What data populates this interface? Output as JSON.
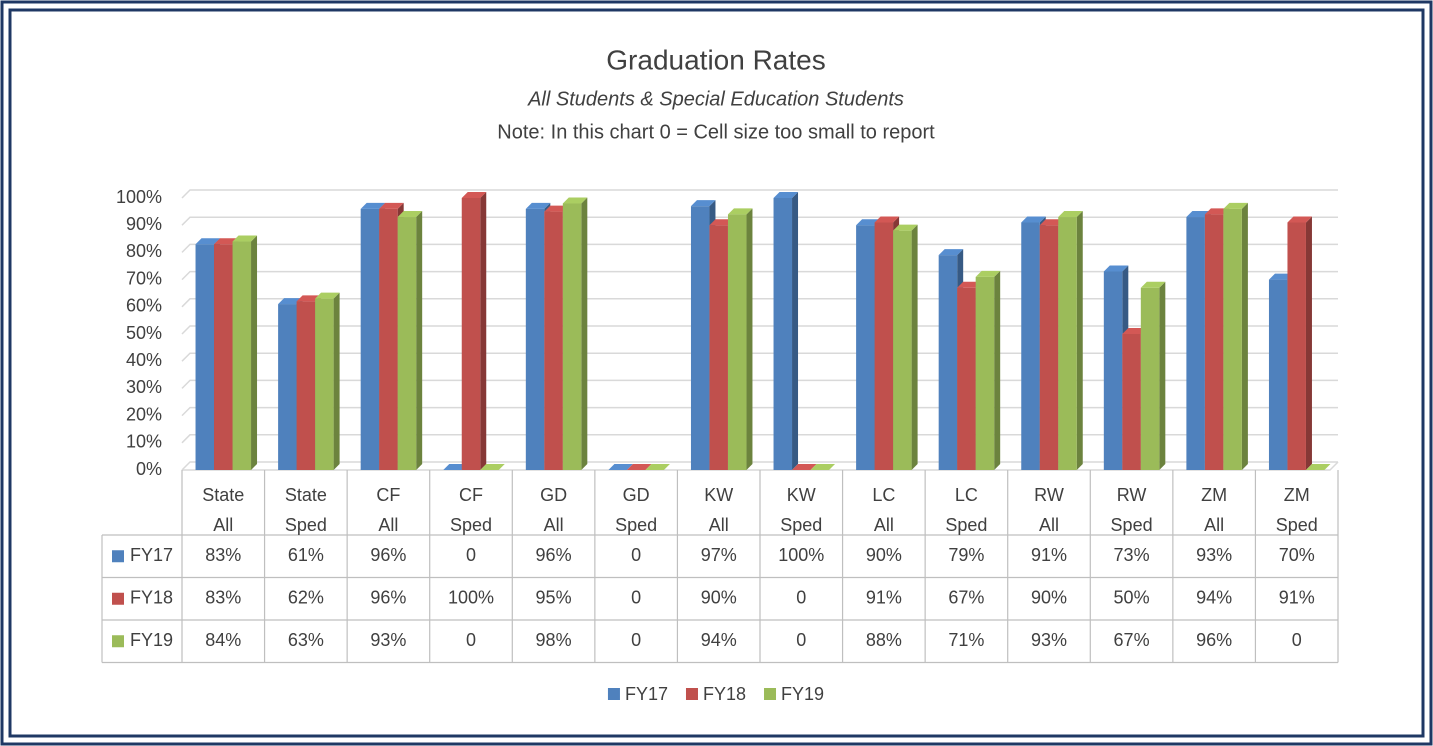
{
  "chart_data": {
    "type": "bar3d",
    "title": "Graduation Rates",
    "subtitle": "All Students & Special Education Students",
    "note": "Note: In this chart 0 = Cell size too small to report",
    "categories": [
      "State All",
      "State Sped",
      "CF All",
      "CF Sped",
      "GD All",
      "GD Sped",
      "KW All",
      "KW Sped",
      "LC All",
      "LC Sped",
      "RW All",
      "RW Sped",
      "ZM All",
      "ZM Sped"
    ],
    "series": [
      {
        "name": "FY17",
        "color": "#4f81bd",
        "values": [
          83,
          61,
          96,
          0,
          96,
          0,
          97,
          100,
          90,
          79,
          91,
          73,
          93,
          70
        ],
        "value_labels": [
          "83%",
          "61%",
          "96%",
          "0",
          "96%",
          "0",
          "97%",
          "100%",
          "90%",
          "79%",
          "91%",
          "73%",
          "93%",
          "70%"
        ]
      },
      {
        "name": "FY18",
        "color": "#c0504d",
        "values": [
          83,
          62,
          96,
          100,
          95,
          0,
          90,
          0,
          91,
          67,
          90,
          50,
          94,
          91
        ],
        "value_labels": [
          "83%",
          "62%",
          "96%",
          "100%",
          "95%",
          "0",
          "90%",
          "0",
          "91%",
          "67%",
          "90%",
          "50%",
          "94%",
          "91%"
        ]
      },
      {
        "name": "FY19",
        "color": "#9bbb59",
        "values": [
          84,
          63,
          93,
          0,
          98,
          0,
          94,
          0,
          88,
          71,
          93,
          67,
          96,
          0
        ],
        "value_labels": [
          "84%",
          "63%",
          "93%",
          "0",
          "98%",
          "0",
          "94%",
          "0",
          "88%",
          "71%",
          "93%",
          "67%",
          "96%",
          "0"
        ]
      }
    ],
    "ylim": [
      0,
      100
    ],
    "yticks": [
      {
        "value": 0,
        "label": "0%"
      },
      {
        "value": 10,
        "label": "10%"
      },
      {
        "value": 20,
        "label": "20%"
      },
      {
        "value": 30,
        "label": "30%"
      },
      {
        "value": 40,
        "label": "40%"
      },
      {
        "value": 50,
        "label": "50%"
      },
      {
        "value": 60,
        "label": "60%"
      },
      {
        "value": 70,
        "label": "70%"
      },
      {
        "value": 80,
        "label": "80%"
      },
      {
        "value": 90,
        "label": "90%"
      },
      {
        "value": 100,
        "label": "100%"
      }
    ],
    "grid": true,
    "legend": "bottom"
  }
}
